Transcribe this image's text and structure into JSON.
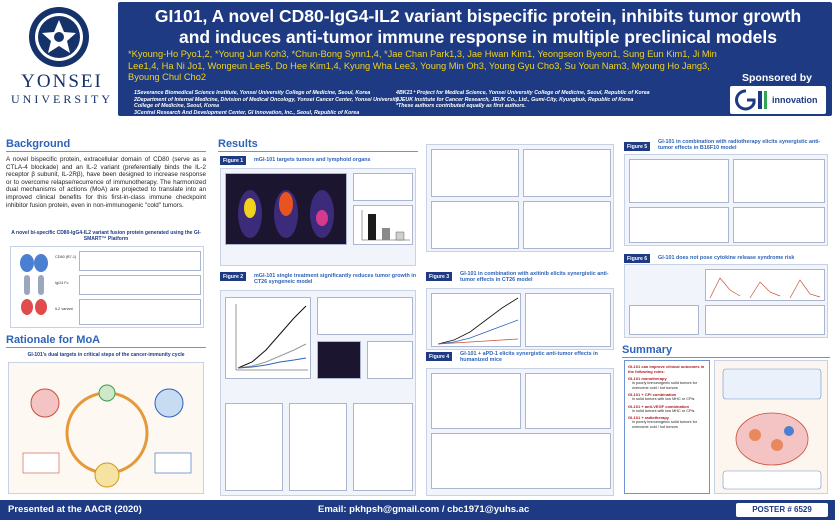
{
  "header": {
    "university_big": "YONSEI",
    "university_small": "UNIVERSITY",
    "title_line1": "GI101, A novel CD80-IgG4-IL2 variant bispecific protein, inhibits tumor growth",
    "title_line2": "and induces anti-tumor immune response in multiple preclinical models",
    "authors": "*Kyoung-Ho Pyo1,2, *Young Jun Koh3, *Chun-Bong Synn1,4, *Jae Chan Park1,3, Jae Hwan Kim1, Yeongseon Byeon1, Sung Eun Kim1, Ji Min Lee1,4, Ha Ni Jo1, Wongeun Lee5, Do Hee Kim1,4, Kyung Wha Lee3, Young Min Oh3, Young Gyu Cho3, Su Youn Nam3, Myoung Ho Jang3, Byoung Chul Cho2",
    "affils_left": [
      "1Severance Biomedical Science Institute, Yonsei University College of Medicine, Seoul, Korea",
      "2Department of Internal Medicine, Division of Medical Oncology, Yonsei Cancer Center, Yonsei University College of Medicine, Seoul, Korea",
      "3Central Research And Development Center, GI Innovation, Inc., Seoul, Republic of Korea"
    ],
    "affils_right": [
      "4BK21⁺ Project for Medical Science, Yonsei University College of Medicine, Seoul, Republic of Korea",
      "5JEUK Institute for Cancer Research, JEUK Co., Ltd., Gumi-City, Kyungbuk, Republic of Korea",
      "*These authors contributed equally as first authors."
    ],
    "sponsor_label": "Sponsored by",
    "sponsor_name": "innovation"
  },
  "background": {
    "heading": "Background",
    "text": "A novel bispecific protein, extracellular domain of CD80 (serve as a CTLA-4 blockade) and an IL-2 variant (preferentially binds the IL-2 receptor β subunit, IL-2Rβ), have been designed to increase response or to overcome relapse/recurrence of immunotherapy. The harmonized dual mechanisms of actions (MoA) are projected to translate into an improved clinical benefits for this first-in-class immune checkpoint inhibitor fusion protein, even in non-immunogenic \"cold\" tumors.",
    "platform_caption": "A novel bi-specific CD80-IgG4-IL2 variant fusion protein generated using the GI-SMART™ Platform",
    "structure_labels": [
      "CD80 (B7-1)",
      "IgG4 Fc",
      "IL2 variant"
    ]
  },
  "rationale": {
    "heading": "Rationale for MoA",
    "caption": "GI-101's dual targets in critical steps of the cancer-immunity cycle"
  },
  "results": {
    "heading": "Results",
    "fig1_tag": "Figure 1",
    "fig1_title": "mGI-101 targets tumors and lymphoid organs",
    "fig2_tag": "Figure 2",
    "fig2_title": "mGI-101 single treatment significantly reduces tumor growth in CT26 syngeneic model",
    "fig3_tag": "Figure 3",
    "fig3_title": "GI-101 in combination with axitinib elicits synergistic anti-tumor effects in CT26 model",
    "fig4_tag": "Figure 4",
    "fig4_title": "GI-101 + aPD-1 elicits synergistic anti-tumor effects in humanized mice",
    "fig5_tag": "Figure 5",
    "fig5_title": "GI-101 in combination with radiotherapy elicits synergistic anti-tumor effects in B16F10 model",
    "fig6_tag": "Figure 6",
    "fig6_title": "GI-101 does not pose cytokine release syndrome risk"
  },
  "summary": {
    "heading": "Summary",
    "intro": "GI-101 can improve clinical outcomes in the following roles:",
    "items": [
      {
        "head": "GI-101 monotherapy",
        "sub": "in poorly immunogenic solid tumors for overcome cold / hot tumors"
      },
      {
        "head": "GI-101 + CPI combination",
        "sub": "in solid tumors with low MHC or CPIs"
      },
      {
        "head": "GI-101 + anti-VEGF combination",
        "sub": "in solid tumors with low MHC or CPIs"
      },
      {
        "head": "GI-101 + radiotherapy",
        "sub": "in poorly immunogenic solid tumors for overcome cold / hot tumors"
      }
    ]
  },
  "footer": {
    "presented": "Presented at the AACR (2020)",
    "email": "Email: pkhpsh@gmail.com / cbc1971@yuhs.ac",
    "poster": "POSTER # 6529"
  },
  "colors": {
    "navy": "#1d3a82",
    "accent_blue": "#2e63b8",
    "author_yellow": "#f2d21c"
  }
}
